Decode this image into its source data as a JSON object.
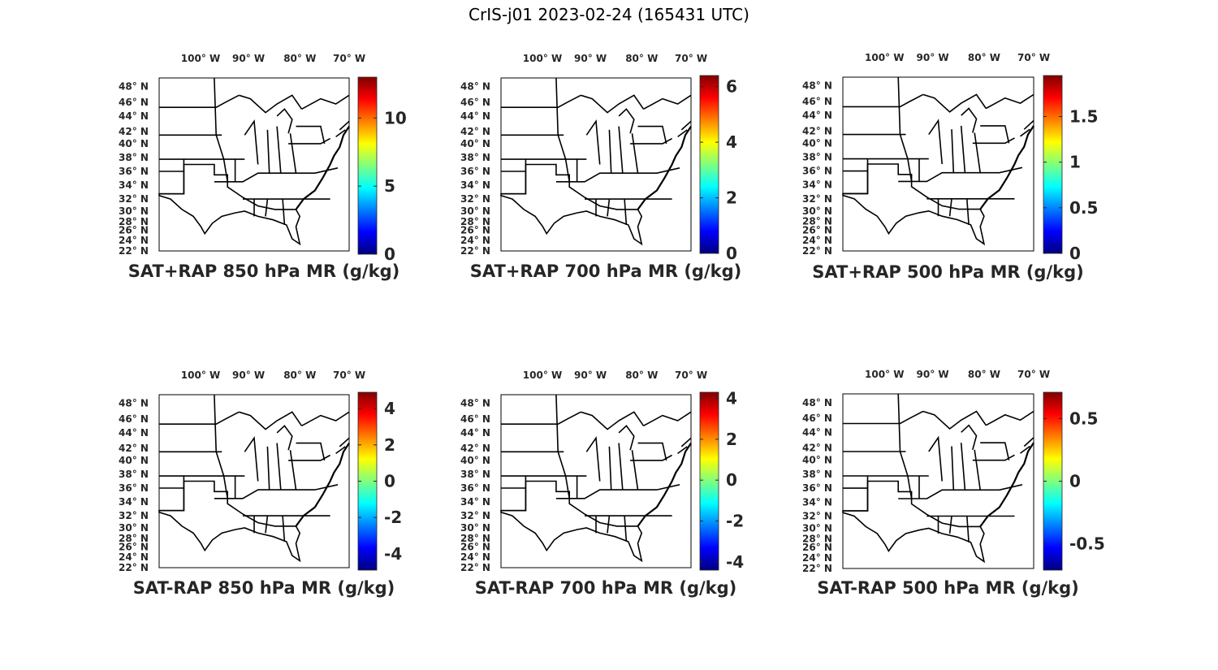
{
  "figure_title": "CrIS-j01 2023-02-24 (165431 UTC)",
  "colormap": "jet",
  "map_region": "eastern United States with state boundaries",
  "lon_ticks": [
    "100",
    "90",
    "80",
    "70"
  ],
  "lon_hemisphere": "W",
  "lat_ticks": [
    "48",
    "46",
    "44",
    "42",
    "40",
    "38",
    "36",
    "34",
    "32",
    "30",
    "28",
    "26",
    "24",
    "22"
  ],
  "lat_hemisphere": "N",
  "degree_symbol": "°",
  "panels": [
    {
      "title": "SAT+RAP 850 hPa MR (g/kg)",
      "colorbar": {
        "min": 0,
        "max": 13,
        "ticks": [
          "0",
          "5",
          "10"
        ]
      }
    },
    {
      "title": "SAT+RAP 700 hPa MR (g/kg)",
      "colorbar": {
        "min": 0,
        "max": 6.4,
        "ticks": [
          "0",
          "2",
          "4",
          "6"
        ]
      }
    },
    {
      "title": "SAT+RAP 500 hPa MR (g/kg)",
      "colorbar": {
        "min": 0,
        "max": 1.95,
        "ticks": [
          "0",
          "0.5",
          "1",
          "1.5"
        ]
      }
    },
    {
      "title": "SAT-RAP 850 hPa MR (g/kg)",
      "colorbar": {
        "min": -4.9,
        "max": 4.9,
        "ticks": [
          "-4",
          "-2",
          "0",
          "2",
          "4"
        ]
      }
    },
    {
      "title": "SAT-RAP 700 hPa MR (g/kg)",
      "colorbar": {
        "min": -4.4,
        "max": 4.3,
        "ticks": [
          "-4",
          "-2",
          "0",
          "2",
          "4"
        ]
      }
    },
    {
      "title": "SAT-RAP 500 hPa MR (g/kg)",
      "colorbar": {
        "min": -0.71,
        "max": 0.71,
        "ticks": [
          "-0.5",
          "0",
          "0.5"
        ]
      }
    }
  ]
}
